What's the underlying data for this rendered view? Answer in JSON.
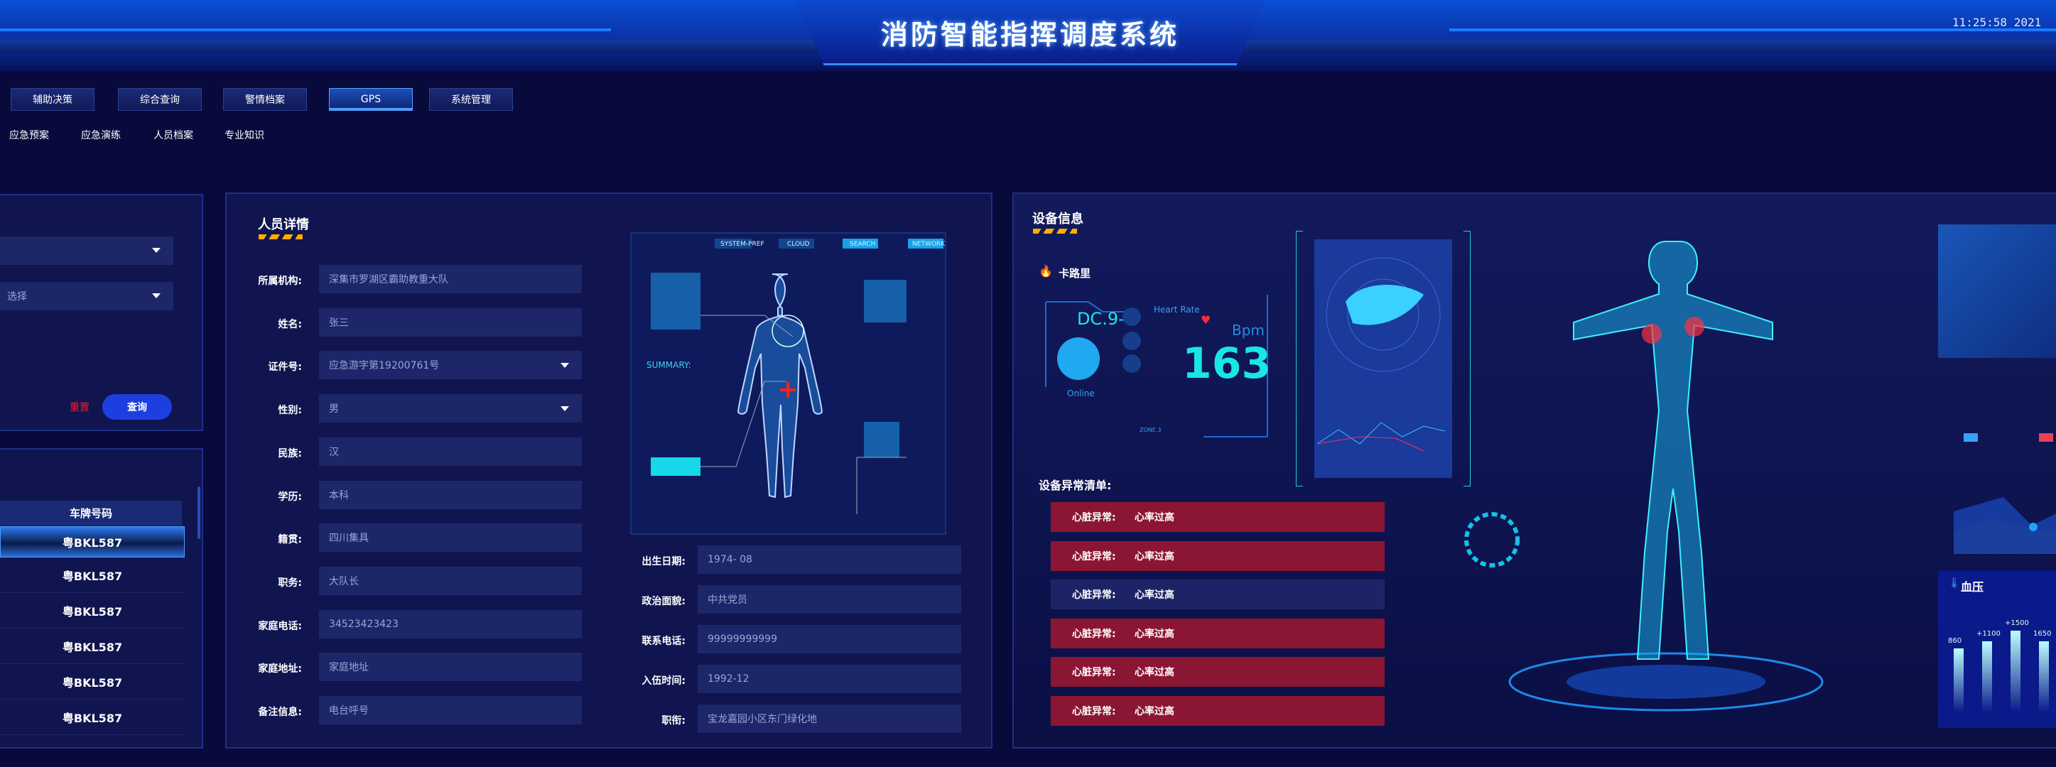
{
  "header": {
    "title": "消防智能指挥调度系统",
    "clock": "11:25:58   2021"
  },
  "nav": {
    "tabs": [
      {
        "label": "辅助决策"
      },
      {
        "label": "综合查询"
      },
      {
        "label": "警情档案"
      },
      {
        "label": "GPS",
        "active": true
      },
      {
        "label": "系统管理"
      }
    ],
    "sub": [
      {
        "label": "应急预案"
      },
      {
        "label": "应急演练"
      },
      {
        "label": "人员档案"
      },
      {
        "label": "专业知识"
      }
    ]
  },
  "filter": {
    "select1": "",
    "select2": "选择",
    "reset": "重置",
    "query": "查询"
  },
  "vehicles": {
    "header": "车牌号码",
    "rows": [
      "粤BKL587",
      "粤BKL587",
      "粤BKL587",
      "粤BKL587",
      "粤BKL587",
      "粤BKL587"
    ]
  },
  "person": {
    "title": "人员详情",
    "left": [
      {
        "label": "所属机构:",
        "value": "深集市罗湖区霸助教重大队"
      },
      {
        "label": "姓名:",
        "value": "张三"
      },
      {
        "label": "证件号:",
        "value": "应急游字第19200761号",
        "dropdown": true
      },
      {
        "label": "性别:",
        "value": "男",
        "dropdown": true
      },
      {
        "label": "民族:",
        "value": "汉"
      },
      {
        "label": "学历:",
        "value": "本科"
      },
      {
        "label": "籍贯:",
        "value": "四川集具"
      },
      {
        "label": "职务:",
        "value": "大队长"
      },
      {
        "label": "家庭电话:",
        "value": "34523423423"
      },
      {
        "label": "家庭地址:",
        "value": "家庭地址"
      },
      {
        "label": "备注信息:",
        "value": "电台呼号"
      }
    ],
    "right": [
      {
        "label": "出生日期:",
        "value": "1974- 08"
      },
      {
        "label": "政治面貌:",
        "value": "中共党员"
      },
      {
        "label": "联系电话:",
        "value": "99999999999"
      },
      {
        "label": "入伍时间:",
        "value": "1992-12"
      },
      {
        "label": "职衔:",
        "value": "宝龙嘉园小区东门绿化地"
      }
    ],
    "hud": {
      "tabs": [
        "SYSTEM-PREF",
        "CLOUD",
        "SEARCH",
        "NETWORK"
      ],
      "summary": "SUMMARY:"
    }
  },
  "device": {
    "title": "设备信息",
    "calorie": "卡路里",
    "hr_code": "DC.9-",
    "hr_label": "Heart Rate",
    "bpm_unit": "Bpm",
    "bpm": "163",
    "status": "Online",
    "zone": "ZONE.3",
    "alerts_title": "设备异常清单:",
    "alerts": [
      {
        "type": "心脏异常:",
        "msg": "心率过高",
        "level": "high"
      },
      {
        "type": "心脏异常:",
        "msg": "心率过高",
        "level": "high"
      },
      {
        "type": "心脏异常:",
        "msg": "心率过高",
        "level": "normal"
      },
      {
        "type": "心脏异常:",
        "msg": "心率过高",
        "level": "high"
      },
      {
        "type": "心脏异常:",
        "msg": "心率过高",
        "level": "high"
      },
      {
        "type": "心脏异常:",
        "msg": "心率过高",
        "level": "high"
      }
    ],
    "bp_title": "血压",
    "bp_values": [
      "860",
      "+1100",
      "+1500",
      "1650"
    ]
  },
  "colors": {
    "bg": "#090a3c",
    "panel": "#10154f",
    "field": "#1d2668",
    "alert": "#8b1633",
    "accent": "#1e4fe0",
    "cyan": "#19e6e6"
  }
}
